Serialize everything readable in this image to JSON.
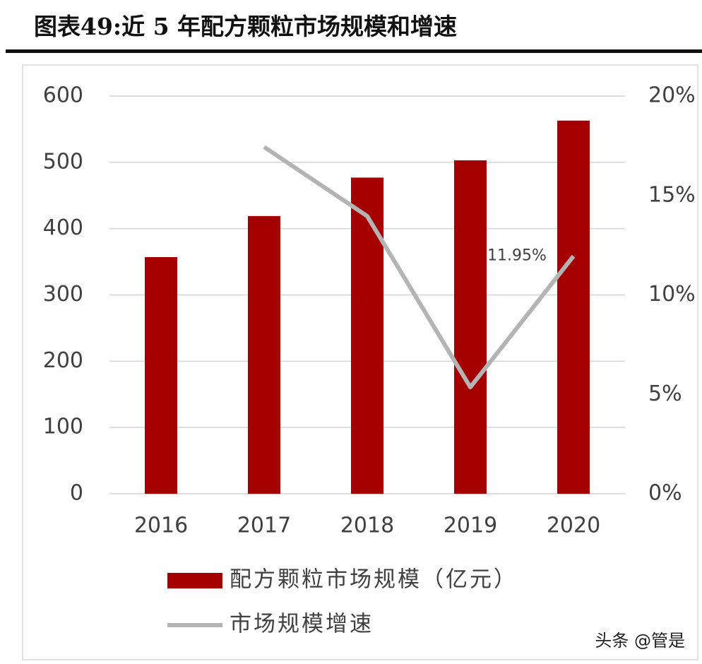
{
  "chart_data": {
    "type": "bar",
    "title": "图表49:近 5 年配方颗粒市场规模和增速",
    "categories": [
      "2016",
      "2017",
      "2018",
      "2019",
      "2020"
    ],
    "series": [
      {
        "name": "配方颗粒市场规模（亿元）",
        "color": "#a50000",
        "values": [
          357,
          419,
          477,
          503,
          563
        ]
      },
      {
        "name": "市场规模增速",
        "color": "#b4b4b4",
        "type": "line",
        "axis": "y2",
        "values": [
          null,
          17.44,
          13.96,
          5.36,
          11.95
        ],
        "value_labels": [
          null,
          null,
          null,
          null,
          "11.95%"
        ]
      }
    ],
    "ylim": [
      0,
      600
    ],
    "yticks": [
      0,
      100,
      200,
      300,
      400,
      500,
      600
    ],
    "y2lim": [
      0,
      20
    ],
    "y2ticks": [
      {
        "value": 0,
        "label": "0%"
      },
      {
        "value": 5,
        "label": "5%"
      },
      {
        "value": 10,
        "label": "10%"
      },
      {
        "value": 15,
        "label": "15%"
      },
      {
        "value": 20,
        "label": "20%"
      }
    ],
    "grid": true,
    "watermark": "头条 @管是"
  }
}
